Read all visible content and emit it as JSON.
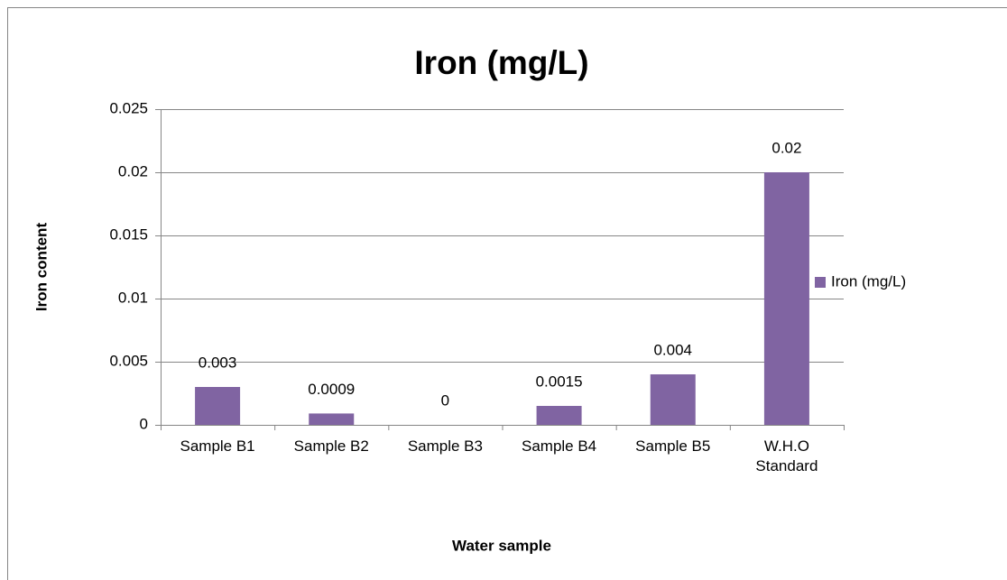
{
  "chart_data": {
    "type": "bar",
    "title": "Iron (mg/L)",
    "x_label": "Water sample",
    "y_label": "Iron content",
    "categories": [
      "Sample B1",
      "Sample B2",
      "Sample B3",
      "Sample B4",
      "Sample B5",
      "W.H.O Standard"
    ],
    "series": [
      {
        "name": "Iron (mg/L)",
        "color": "#8064a2",
        "values": [
          0.003,
          0.0009,
          0,
          0.0015,
          0.004,
          0.02
        ]
      }
    ],
    "ylim": [
      0,
      0.025
    ],
    "yticks": [
      0,
      0.005,
      0.01,
      0.015,
      0.02,
      0.025
    ],
    "grid": true,
    "legend": "right"
  }
}
